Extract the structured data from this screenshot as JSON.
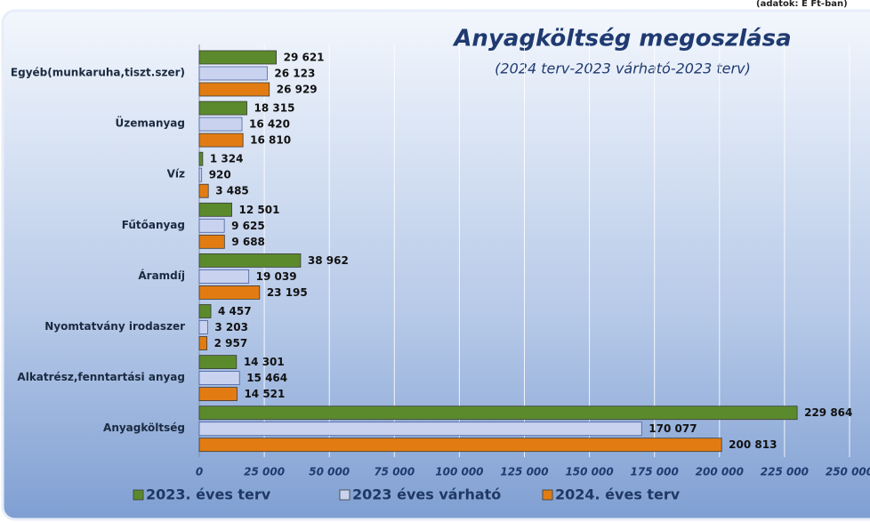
{
  "chart_data": {
    "type": "bar",
    "orientation": "horizontal",
    "title": "Anyagköltség megoszlása",
    "subtitle": "(2024 terv-2023 várható-2023 terv)",
    "note": "(adatok: E Ft-ban)",
    "categories": [
      "Egyéb(munkaruha,tiszt.szer)",
      "Üzemanyag",
      "Víz",
      "Fűtőanyag",
      "Áramdíj",
      "Nyomtatvány irodaszer",
      "Alkatrész,fenntartási anyag",
      "Anyagköltség"
    ],
    "series": [
      {
        "name": "2023. éves terv",
        "color": "#5b8a2c",
        "values": [
          29621,
          18315,
          1324,
          12501,
          38962,
          4457,
          14301,
          229864
        ],
        "value_labels": [
          "29 621",
          "18 315",
          "1 324",
          "12 501",
          "38 962",
          "4 457",
          "14 301",
          "229 864"
        ]
      },
      {
        "name": "2023 éves várható",
        "color": "#c9d3ef",
        "values": [
          26123,
          16420,
          920,
          9625,
          19039,
          3203,
          15464,
          170077
        ],
        "value_labels": [
          "26 123",
          "16 420",
          "920",
          "9 625",
          "19 039",
          "3 203",
          "15 464",
          "170 077"
        ]
      },
      {
        "name": "2024. éves terv",
        "color": "#e27c12",
        "values": [
          26929,
          16810,
          3485,
          9688,
          23195,
          2957,
          14521,
          200813
        ],
        "value_labels": [
          "26 929",
          "16 810",
          "3 485",
          "9 688",
          "23 195",
          "2 957",
          "14 521",
          "200 813"
        ]
      }
    ],
    "xlim": [
      0,
      250000
    ],
    "xticks": [
      0,
      {
        "value": 25000,
        "label": "25 000"
      },
      {
        "value": 50000,
        "label": "50 000"
      },
      {
        "value": 75000,
        "label": "75 000"
      },
      {
        "value": 100000,
        "label": "100 000"
      },
      {
        "value": 125000,
        "label": "125 000"
      },
      {
        "value": 150000,
        "label": "150 000"
      },
      {
        "value": 175000,
        "label": "175 000"
      },
      {
        "value": 200000,
        "label": "200 000"
      },
      {
        "value": 225000,
        "label": "225 000"
      },
      {
        "value": 250000,
        "label": "250 000"
      }
    ],
    "grid": true,
    "legend": "bottom"
  }
}
